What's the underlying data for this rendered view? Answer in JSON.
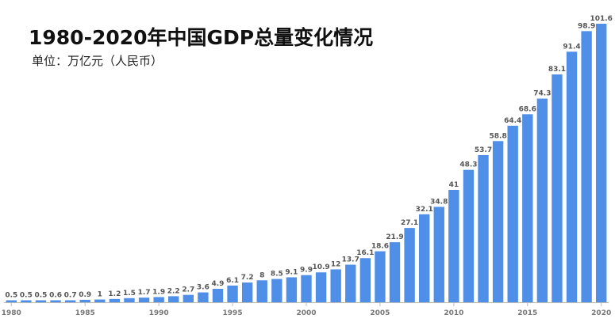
{
  "chart_data": {
    "type": "bar",
    "title": "1980-2020年中国GDP总量变化情况",
    "subtitle": "单位：万亿元（人民币）",
    "xlabel": "",
    "ylabel": "",
    "ylim": [
      0,
      101.6
    ],
    "bar_color": "#4f8fe8",
    "axis_color": "#bbbbbb",
    "categories": [
      "1980",
      "1981",
      "1982",
      "1983",
      "1984",
      "1985",
      "1986",
      "1987",
      "1988",
      "1989",
      "1990",
      "1991",
      "1992",
      "1993",
      "1994",
      "1995",
      "1996",
      "1997",
      "1998",
      "1999",
      "2000",
      "2001",
      "2002",
      "2003",
      "2004",
      "2005",
      "2006",
      "2007",
      "2008",
      "2009",
      "2010",
      "2011",
      "2012",
      "2013",
      "2014",
      "2015",
      "2016",
      "2017",
      "2018",
      "2019",
      "2020"
    ],
    "values": [
      0.5,
      0.5,
      0.5,
      0.6,
      0.7,
      0.9,
      1,
      1.2,
      1.5,
      1.7,
      1.9,
      2.2,
      2.7,
      3.6,
      4.9,
      6.1,
      7.2,
      8,
      8.5,
      9.1,
      9.9,
      10.9,
      12,
      13.7,
      16.1,
      18.6,
      21.9,
      27.1,
      32.1,
      34.8,
      41,
      48.3,
      53.7,
      58.8,
      64.4,
      68.6,
      74.3,
      83.1,
      91.4,
      98.9,
      101.6
    ],
    "value_labels": [
      "0.5",
      "0.5",
      "0.5",
      "0.6",
      "0.7",
      "0.9",
      "1",
      "1.2",
      "1.5",
      "1.7",
      "1.9",
      "2.2",
      "2.7",
      "3.6",
      "4.9",
      "6.1",
      "7.2",
      "8",
      "8.5",
      "9.1",
      "9.9",
      "10.9",
      "12",
      "13.7",
      "16.1",
      "18.6",
      "21.9",
      "27.1",
      "32.1",
      "34.8",
      "41",
      "48.3",
      "53.7",
      "58.8",
      "64.4",
      "68.6",
      "74.3",
      "83.1",
      "91.4",
      "98.9",
      "101.6"
    ],
    "x_ticks": [
      "1980",
      "1985",
      "1990",
      "1995",
      "2000",
      "2005",
      "2010",
      "2015",
      "2020"
    ]
  }
}
